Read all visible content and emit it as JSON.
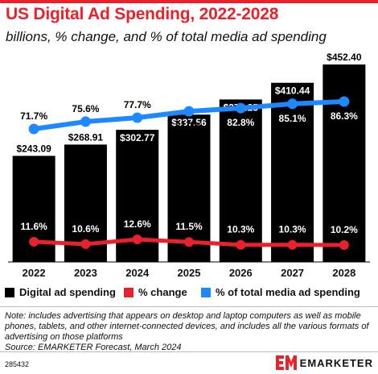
{
  "header": {
    "title": "US Digital Ad Spending, 2022-2028",
    "subtitle": "billions, % change, and % of total media ad spending",
    "accent_color": "#e8212b"
  },
  "chart_data": {
    "type": "bar",
    "categories": [
      "2022",
      "2023",
      "2024",
      "2025",
      "2026",
      "2027",
      "2028"
    ],
    "series": [
      {
        "name": "Digital ad spending",
        "type": "bar",
        "color": "#000000",
        "values": [
          243.09,
          268.91,
          302.77,
          337.56,
          372.25,
          410.44,
          452.4
        ],
        "labels": [
          "$243.09",
          "$268.91",
          "$302.77",
          "$337.56",
          "$372.25",
          "$410.44",
          "$452.40"
        ]
      },
      {
        "name": "% change",
        "type": "line",
        "color": "#e8212b",
        "values": [
          11.6,
          10.6,
          12.6,
          11.5,
          10.3,
          10.3,
          10.2
        ],
        "labels": [
          "11.6%",
          "10.6%",
          "12.6%",
          "11.5%",
          "10.3%",
          "10.3%",
          "10.2%"
        ]
      },
      {
        "name": "% of total media ad spending",
        "type": "line",
        "color": "#1e88ff",
        "values": [
          71.7,
          75.6,
          77.7,
          81.1,
          82.8,
          85.1,
          86.3
        ],
        "labels": [
          "71.7%",
          "75.6%",
          "77.7%",
          "81.1%",
          "82.8%",
          "85.1%",
          "86.3%"
        ]
      }
    ],
    "grid": false,
    "legend": "bottom"
  },
  "legend": {
    "items": [
      {
        "label": "Digital ad spending",
        "color": "#000000"
      },
      {
        "label": "% change",
        "color": "#e8212b"
      },
      {
        "label": "% of total media ad spending",
        "color": "#1e88ff"
      }
    ]
  },
  "note": {
    "text": "Note: includes advertising that appears on desktop and laptop computers as well as mobile phones, tablets, and other internet-connected devices, and includes all the various formats of advertising on those platforms",
    "source": "Source: EMARKETER Forecast, March 2024"
  },
  "footer": {
    "chart_id": "285432",
    "brand": "EMARKETER",
    "brand_logo_text": "EM"
  }
}
